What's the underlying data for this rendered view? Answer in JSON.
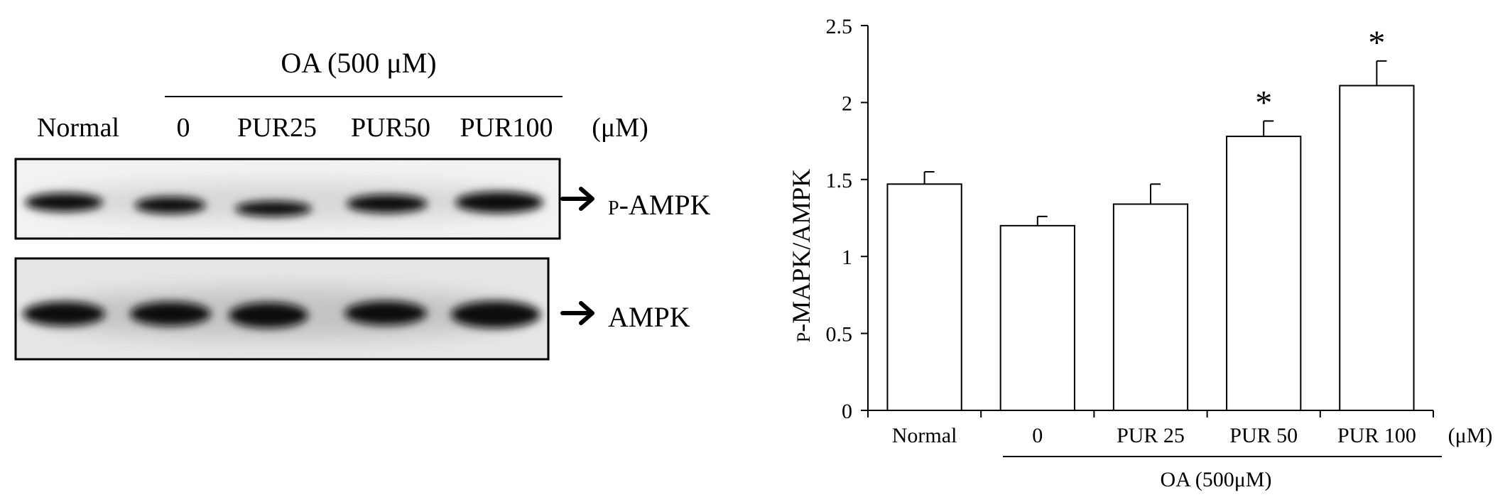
{
  "blot": {
    "treatment_label": "OA  (500 μM)",
    "lanes": [
      "Normal",
      "0",
      "PUR25",
      "PUR50",
      "PUR100"
    ],
    "unit_label": "(μM)",
    "rows": [
      {
        "label_prefix": "P",
        "label_main": "-AMPK"
      },
      {
        "label_prefix": "",
        "label_main": "AMPK"
      }
    ]
  },
  "chart_data": {
    "type": "bar",
    "categories": [
      "Normal",
      "0",
      "PUR 25",
      "PUR 50",
      "PUR 100"
    ],
    "values": [
      1.47,
      1.2,
      1.34,
      1.78,
      2.11
    ],
    "errors": [
      0.08,
      0.06,
      0.13,
      0.1,
      0.16
    ],
    "significance": [
      "",
      "",
      "",
      "*",
      "*"
    ],
    "title": "",
    "xlabel": "",
    "ylabel_prefix": "P",
    "ylabel_main": "-MAPK/AMPK",
    "ylim": [
      0,
      2.5
    ],
    "yticks": [
      "0",
      "0.5",
      "1",
      "1.5",
      "2",
      "2.5"
    ],
    "unit_label": "(μM)",
    "group_label": "OA (500μM)",
    "bar_color": "#ffffff",
    "grid": false
  }
}
